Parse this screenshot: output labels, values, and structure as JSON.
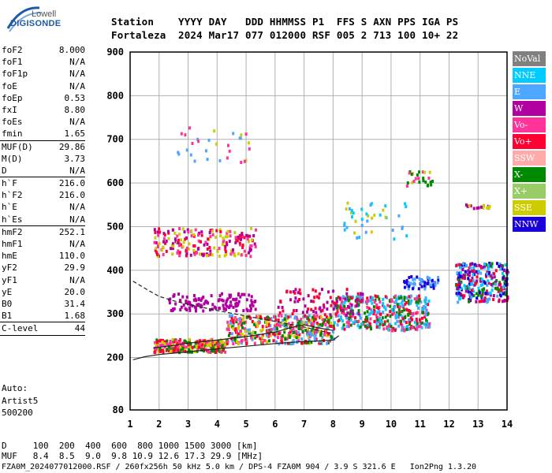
{
  "logo": {
    "top": "Lowell",
    "main": "DIGISONDE"
  },
  "header": {
    "line1": "Station    YYYY DAY   DDD HHMMSS P1  FFS S AXN PPS IGA PS",
    "line2": "Fortaleza  2024 Mar17 077 012000 RSF 005 2 713 100 10+ 22"
  },
  "params": [
    {
      "k": "foF2",
      "v": "8.000"
    },
    {
      "k": "foF1",
      "v": "N/A"
    },
    {
      "k": "foF1p",
      "v": "N/A"
    },
    {
      "k": "foE",
      "v": "N/A"
    },
    {
      "k": "foEp",
      "v": "0.53"
    },
    {
      "k": "fxI",
      "v": "8.80"
    },
    {
      "k": "foEs",
      "v": "N/A"
    },
    {
      "k": "fmin",
      "v": "1.65"
    },
    {
      "k": "MUF(D)",
      "v": "29.86",
      "sep": true
    },
    {
      "k": "M(D)",
      "v": "3.73"
    },
    {
      "k": "D",
      "v": "N/A"
    },
    {
      "k": "h`F",
      "v": "216.0",
      "sep": true
    },
    {
      "k": "h`F2",
      "v": "216.0"
    },
    {
      "k": "h`E",
      "v": "N/A"
    },
    {
      "k": "h`Es",
      "v": "N/A"
    },
    {
      "k": "hmF2",
      "v": "252.1",
      "sep": true
    },
    {
      "k": "hmF1",
      "v": "N/A"
    },
    {
      "k": "hmE",
      "v": "110.0"
    },
    {
      "k": "yF2",
      "v": "29.9"
    },
    {
      "k": "yF1",
      "v": "N/A"
    },
    {
      "k": "yE",
      "v": "20.0"
    },
    {
      "k": "B0",
      "v": "31.4"
    },
    {
      "k": "B1",
      "v": "1.68"
    },
    {
      "k": "C-level",
      "v": "44",
      "sep": true
    }
  ],
  "auto": [
    "Auto:",
    "Artist5",
    "500200"
  ],
  "bottom": {
    "d_row": "D     100  200  400  600  800 1000 1500 3000 [km]",
    "muf_row": "MUF   8.4  8.5  9.0  9.8 10.9 12.6 17.3 29.9 [MHz]",
    "footer": "FZA0M_2024077012000.RSF / 260fx256h 50 kHz 5.0 km / DPS-4 FZA0M 904 / 3.9 S 321.6 E   Ion2Png 1.3.20"
  },
  "legend": [
    {
      "label": "NoVal",
      "color": "#808080"
    },
    {
      "label": "NNE",
      "color": "#00ccff"
    },
    {
      "label": "E",
      "color": "#4da6ff"
    },
    {
      "label": "W",
      "color": "#b0009f"
    },
    {
      "label": "Vo-",
      "color": "#ff3399"
    },
    {
      "label": "Vo+",
      "color": "#ff0033"
    },
    {
      "label": "SSW",
      "color": "#ffaaaa"
    },
    {
      "label": "X-",
      "color": "#008800"
    },
    {
      "label": "X+",
      "color": "#99cc66"
    },
    {
      "label": "SSE",
      "color": "#cccc00"
    },
    {
      "label": "NNW",
      "color": "#1a00d9"
    }
  ],
  "chart_data": {
    "type": "scatter",
    "x_ticks": [
      1,
      2,
      3,
      4,
      5,
      6,
      7,
      8,
      9,
      10,
      11,
      12,
      13,
      14
    ],
    "y_ticks": [
      80,
      200,
      300,
      400,
      500,
      600,
      700,
      800,
      900
    ],
    "xlim": [
      1,
      14
    ],
    "ylim": [
      80,
      900
    ],
    "grid": true,
    "traces": [
      {
        "name": "",
        "points": [
          [
            1.1,
            195
          ],
          [
            1.5,
            202
          ],
          [
            2,
            207
          ],
          [
            3,
            213
          ],
          [
            4,
            220
          ],
          [
            5,
            226
          ],
          [
            6,
            232
          ],
          [
            7,
            237
          ],
          [
            7.5,
            238
          ],
          [
            8,
            240
          ],
          [
            8.2,
            250
          ]
        ],
        "style": "solid"
      },
      {
        "name": "",
        "points": [
          [
            1.1,
            375
          ],
          [
            1.6,
            355
          ],
          [
            2,
            340
          ],
          [
            2.5,
            330
          ],
          [
            3,
            322
          ],
          [
            4,
            308
          ],
          [
            5,
            295
          ],
          [
            6,
            283
          ],
          [
            7,
            270
          ],
          [
            7.5,
            262
          ],
          [
            8,
            255
          ]
        ],
        "style": "dashed"
      },
      {
        "name": "",
        "points": [
          [
            1.8,
            222
          ],
          [
            2.5,
            228
          ],
          [
            3,
            233
          ],
          [
            4,
            240
          ],
          [
            5,
            248
          ],
          [
            6,
            258
          ],
          [
            6.5,
            268
          ],
          [
            7,
            275
          ],
          [
            7.5,
            268
          ],
          [
            8,
            262
          ]
        ],
        "style": "solid"
      }
    ],
    "clusters": [
      {
        "x": [
          1.8,
          4.3
        ],
        "y": [
          215,
          245
        ],
        "colors": [
          "#ff0033",
          "#ff3399",
          "#008800",
          "#cccc00"
        ],
        "n": 300
      },
      {
        "x": [
          4.3,
          8
        ],
        "y": [
          235,
          300
        ],
        "colors": [
          "#ff0033",
          "#ff3399",
          "#008800",
          "#4da6ff",
          "#cccc00"
        ],
        "n": 450
      },
      {
        "x": [
          8,
          11.3
        ],
        "y": [
          265,
          345
        ],
        "colors": [
          "#ff0033",
          "#ff3399",
          "#4da6ff",
          "#00ccff",
          "#008800"
        ],
        "n": 400
      },
      {
        "x": [
          6,
          9
        ],
        "y": [
          300,
          360
        ],
        "colors": [
          "#ff0033",
          "#b0009f"
        ],
        "n": 90
      },
      {
        "x": [
          2.3,
          5.3
        ],
        "y": [
          310,
          350
        ],
        "colors": [
          "#b0009f"
        ],
        "n": 120
      },
      {
        "x": [
          1.8,
          5.3
        ],
        "y": [
          435,
          500
        ],
        "colors": [
          "#ff0033",
          "#cccc00",
          "#b0009f",
          "#ff3399"
        ],
        "n": 200
      },
      {
        "x": [
          8.3,
          10.5
        ],
        "y": [
          470,
          560
        ],
        "colors": [
          "#4da6ff",
          "#cccc00",
          "#00ccff"
        ],
        "n": 40
      },
      {
        "x": [
          10.5,
          11.5
        ],
        "y": [
          595,
          630
        ],
        "colors": [
          "#cccc00",
          "#008800",
          "#ff3399"
        ],
        "n": 25
      },
      {
        "x": [
          2.6,
          5.2
        ],
        "y": [
          650,
          735
        ],
        "colors": [
          "#cccc00",
          "#4da6ff",
          "#ff3399"
        ],
        "n": 30
      },
      {
        "x": [
          10.4,
          11.6
        ],
        "y": [
          360,
          390
        ],
        "colors": [
          "#1a00d9",
          "#4da6ff"
        ],
        "n": 60
      },
      {
        "x": [
          12.2,
          14
        ],
        "y": [
          330,
          420
        ],
        "colors": [
          "#1a00d9",
          "#ff0033",
          "#008800",
          "#4da6ff",
          "#00ccff",
          "#b0009f"
        ],
        "n": 300
      },
      {
        "x": [
          12.4,
          13.4
        ],
        "y": [
          545,
          555
        ],
        "colors": [
          "#cccc00",
          "#b0009f"
        ],
        "n": 20
      }
    ]
  }
}
